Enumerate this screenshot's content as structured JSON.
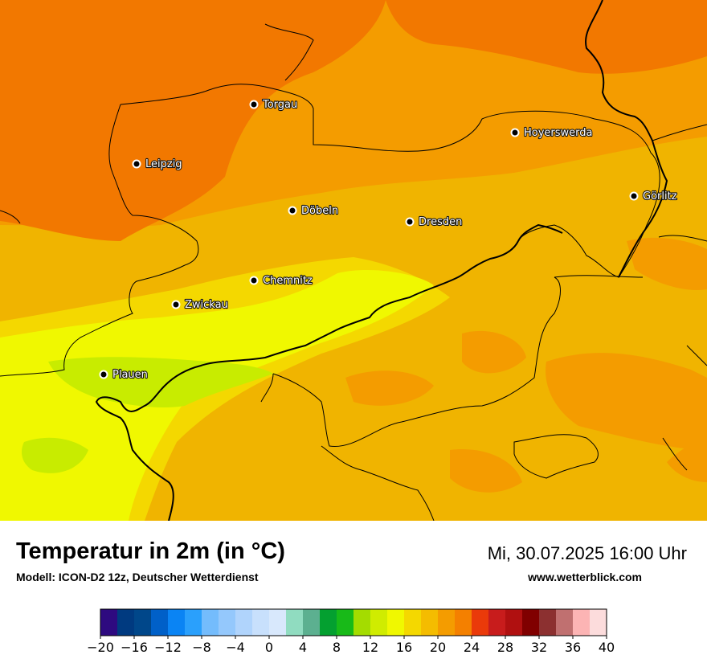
{
  "title": "Temperatur in 2m (in °C)",
  "model": "Modell: ICON-D2 12z, Deutscher Wetterdienst",
  "datetime": "Mi, 30.07.2025 16:00 Uhr",
  "website": "www.wetterblick.com",
  "cities": [
    {
      "name": "Torgau"
    },
    {
      "name": "Leipzig"
    },
    {
      "name": "Hoyerswerda"
    },
    {
      "name": "Görlitz"
    },
    {
      "name": "Döbeln"
    },
    {
      "name": "Dresden"
    },
    {
      "name": "Chemnitz"
    },
    {
      "name": "Zwickau"
    },
    {
      "name": "Plauen"
    }
  ],
  "legend": {
    "min": -20,
    "max": 40,
    "step": 2,
    "tick_labels": [
      "−20",
      "−16",
      "−12",
      "−8",
      "−4",
      "0",
      "4",
      "8",
      "12",
      "16",
      "20",
      "24",
      "28",
      "32",
      "36",
      "40"
    ],
    "colors": [
      "#2e0a80",
      "#003a80",
      "#00478a",
      "#0060c8",
      "#0a84f4",
      "#2aa0fc",
      "#74bcfc",
      "#94c8fc",
      "#b0d4fc",
      "#c8e0fc",
      "#d8e8fc",
      "#90dcc0",
      "#5cb090",
      "#04a030",
      "#18ba18",
      "#a4dc00",
      "#d0ec00",
      "#f0f800",
      "#f4d800",
      "#f4bc00",
      "#f49c00",
      "#f48000",
      "#ea3a0a",
      "#c81c1c",
      "#b01010",
      "#800000",
      "#8c3030",
      "#c07070",
      "#fcb4b4",
      "#fcdcdc"
    ]
  }
}
